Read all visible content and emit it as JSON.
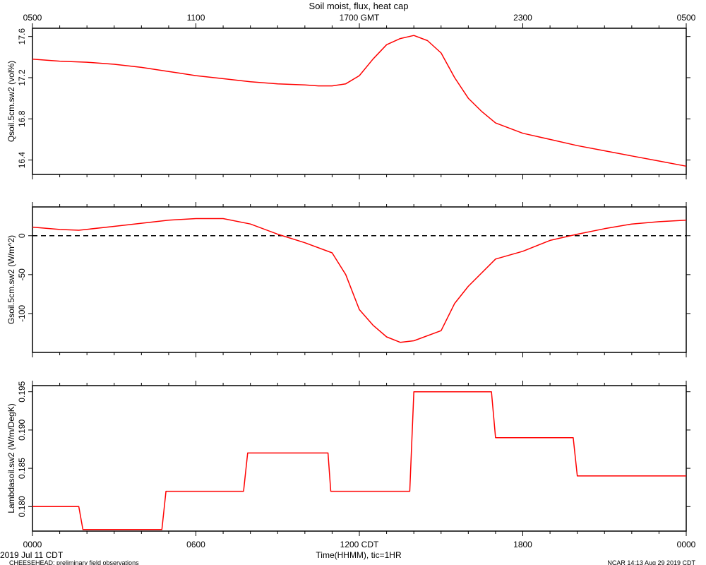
{
  "title": "Soil moist, flux, heat cap",
  "colors": {
    "series": "#ff0000",
    "axis": "#000000",
    "background": "#ffffff"
  },
  "top_axis": {
    "ticks": [
      "0500",
      "1100",
      "1700 GMT",
      "2300",
      "0500"
    ]
  },
  "bottom_axis": {
    "ticks": [
      "0000",
      "0600",
      "1200 CDT",
      "1800",
      "0000"
    ],
    "label": "Time(HHMM), tic=1HR"
  },
  "footer": {
    "date": "2019 Jul 11 CDT",
    "project": "CHEESEHEAD: preliminary field observations",
    "stamp": "NCAR 14:13 Aug 29 2019 CDT"
  },
  "chart_data": [
    {
      "type": "line",
      "ylabel": "Qsoil.5cm.sw2 (vol%)",
      "ylim": [
        16.26,
        17.68
      ],
      "yticks": [
        16.4,
        16.8,
        17.2,
        17.6
      ],
      "ytick_labels": [
        "16.4",
        "16.8",
        "17.2",
        "17.6"
      ],
      "xlim": [
        0,
        24
      ],
      "x": [
        0,
        1,
        2,
        3,
        4,
        5,
        6,
        7,
        8,
        9,
        10,
        10.5,
        11,
        11.5,
        12,
        12.5,
        13,
        13.5,
        14,
        14.5,
        15,
        15.5,
        16,
        16.5,
        17,
        18,
        19,
        20,
        21,
        22,
        23,
        24
      ],
      "series": [
        {
          "values": [
            17.38,
            17.36,
            17.35,
            17.33,
            17.3,
            17.26,
            17.22,
            17.19,
            17.16,
            17.14,
            17.13,
            17.12,
            17.12,
            17.14,
            17.22,
            17.38,
            17.52,
            17.58,
            17.61,
            17.56,
            17.44,
            17.2,
            17.0,
            16.87,
            16.76,
            16.66,
            16.6,
            16.54,
            16.49,
            16.44,
            16.39,
            16.34
          ]
        }
      ]
    },
    {
      "type": "line",
      "ylabel": "Gsoil.5cm.sw2 (W/m^2)",
      "ylim": [
        -150,
        37
      ],
      "yticks": [
        -100,
        -50,
        0
      ],
      "ytick_labels": [
        "-100",
        "-50",
        "0"
      ],
      "zero_line": 0,
      "xlim": [
        0,
        24
      ],
      "x": [
        0,
        1,
        1.7,
        3,
        5,
        6,
        7,
        8,
        9,
        10,
        11,
        11.5,
        12,
        12.5,
        13,
        13.5,
        14,
        15,
        15.5,
        16,
        17,
        18,
        19,
        20,
        21,
        22,
        23,
        24
      ],
      "series": [
        {
          "values": [
            11,
            8,
            7,
            12,
            20,
            22,
            22,
            15,
            2,
            -9,
            -22,
            -50,
            -95,
            -115,
            -130,
            -137,
            -135,
            -122,
            -87,
            -65,
            -30,
            -20,
            -6,
            2,
            9,
            15,
            18,
            20
          ]
        }
      ]
    },
    {
      "type": "line",
      "ylabel": "Lambdasoil.sw2 (W/m/DegK)",
      "ylim": [
        0.1768,
        0.1958
      ],
      "yticks": [
        0.18,
        0.185,
        0.19,
        0.195
      ],
      "ytick_labels": [
        "0.180",
        "0.185",
        "0.190",
        "0.195"
      ],
      "xlim": [
        0,
        24
      ],
      "x": [
        0,
        1.7,
        1.85,
        4.75,
        4.9,
        7.75,
        7.9,
        10.85,
        10.95,
        13.85,
        14.0,
        16.85,
        17.0,
        19.85,
        20.0,
        24
      ],
      "series": [
        {
          "values": [
            0.18,
            0.18,
            0.177,
            0.177,
            0.182,
            0.182,
            0.187,
            0.187,
            0.182,
            0.182,
            0.195,
            0.195,
            0.189,
            0.189,
            0.184,
            0.184
          ]
        }
      ]
    }
  ]
}
